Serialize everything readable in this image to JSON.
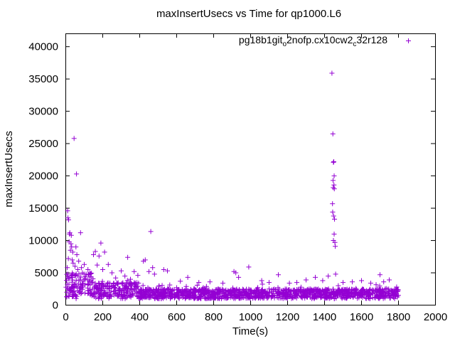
{
  "chart_data": {
    "type": "scatter",
    "title": "maxInsertUsecs vs Time for qp1000.L6",
    "xlabel": "Time(s)",
    "ylabel": "maxInsertUsecs",
    "xlim": [
      0,
      2000
    ],
    "ylim": [
      0,
      42000
    ],
    "xticks": [
      0,
      200,
      400,
      600,
      800,
      1000,
      1200,
      1400,
      1600,
      1800,
      2000
    ],
    "yticks": [
      0,
      5000,
      10000,
      15000,
      20000,
      25000,
      30000,
      35000,
      40000
    ],
    "grid": false,
    "legend_position": "top-right",
    "marker": "plus",
    "series": [
      {
        "name": "pg18b1git_o2nofp.cx10cw2_c32r128",
        "name_parts": [
          {
            "text": "pg18b1git",
            "sub": false
          },
          {
            "text": "o",
            "sub": true
          },
          {
            "text": "2nofp.cx10cw2",
            "sub": false
          },
          {
            "text": "c",
            "sub": true
          },
          {
            "text": "32r128",
            "sub": false
          }
        ],
        "color": "#9400d3",
        "outliers": [
          [
            5,
            2000
          ],
          [
            8,
            5800
          ],
          [
            10,
            14600
          ],
          [
            12,
            13500
          ],
          [
            14,
            7200
          ],
          [
            15,
            13200
          ],
          [
            18,
            9800
          ],
          [
            20,
            11000
          ],
          [
            22,
            11200
          ],
          [
            25,
            8500
          ],
          [
            28,
            9500
          ],
          [
            30,
            10800
          ],
          [
            32,
            9000
          ],
          [
            35,
            7000
          ],
          [
            38,
            8200
          ],
          [
            40,
            6500
          ],
          [
            45,
            25800
          ],
          [
            50,
            6000
          ],
          [
            55,
            9000
          ],
          [
            58,
            20300
          ],
          [
            60,
            7800
          ],
          [
            65,
            5500
          ],
          [
            70,
            6800
          ],
          [
            80,
            11200
          ],
          [
            85,
            5800
          ],
          [
            90,
            5000
          ],
          [
            100,
            6300
          ],
          [
            110,
            4800
          ],
          [
            120,
            5500
          ],
          [
            130,
            5000
          ],
          [
            150,
            7800
          ],
          [
            160,
            8300
          ],
          [
            170,
            6200
          ],
          [
            180,
            7600
          ],
          [
            190,
            9600
          ],
          [
            200,
            5500
          ],
          [
            210,
            8200
          ],
          [
            230,
            6300
          ],
          [
            250,
            5000
          ],
          [
            270,
            4200
          ],
          [
            300,
            5300
          ],
          [
            320,
            4500
          ],
          [
            335,
            7400
          ],
          [
            350,
            4000
          ],
          [
            370,
            5200
          ],
          [
            390,
            4600
          ],
          [
            420,
            6800
          ],
          [
            430,
            7000
          ],
          [
            450,
            5200
          ],
          [
            460,
            11400
          ],
          [
            470,
            5800
          ],
          [
            480,
            4800
          ],
          [
            530,
            5500
          ],
          [
            550,
            5300
          ],
          [
            620,
            3700
          ],
          [
            660,
            4300
          ],
          [
            720,
            3500
          ],
          [
            780,
            3600
          ],
          [
            850,
            3400
          ],
          [
            910,
            5200
          ],
          [
            920,
            5000
          ],
          [
            935,
            4300
          ],
          [
            990,
            5900
          ],
          [
            1060,
            3800
          ],
          [
            1100,
            3500
          ],
          [
            1150,
            4700
          ],
          [
            1210,
            3400
          ],
          [
            1250,
            3500
          ],
          [
            1300,
            3900
          ],
          [
            1350,
            4300
          ],
          [
            1390,
            3800
          ],
          [
            1420,
            4500
          ],
          [
            1440,
            35900
          ],
          [
            1445,
            26500
          ],
          [
            1448,
            22100
          ],
          [
            1450,
            22200
          ],
          [
            1452,
            20000
          ],
          [
            1446,
            19300
          ],
          [
            1451,
            18600
          ],
          [
            1447,
            18200
          ],
          [
            1453,
            18000
          ],
          [
            1443,
            15700
          ],
          [
            1444,
            14400
          ],
          [
            1449,
            13800
          ],
          [
            1454,
            13300
          ],
          [
            1452,
            11000
          ],
          [
            1448,
            10000
          ],
          [
            1456,
            9700
          ],
          [
            1458,
            9100
          ],
          [
            1460,
            4800
          ],
          [
            1500,
            3500
          ],
          [
            1550,
            3600
          ],
          [
            1600,
            3800
          ],
          [
            1650,
            3400
          ],
          [
            1700,
            4700
          ],
          [
            1720,
            3600
          ],
          [
            1750,
            3900
          ],
          [
            1790,
            2800
          ]
        ]
      }
    ]
  }
}
